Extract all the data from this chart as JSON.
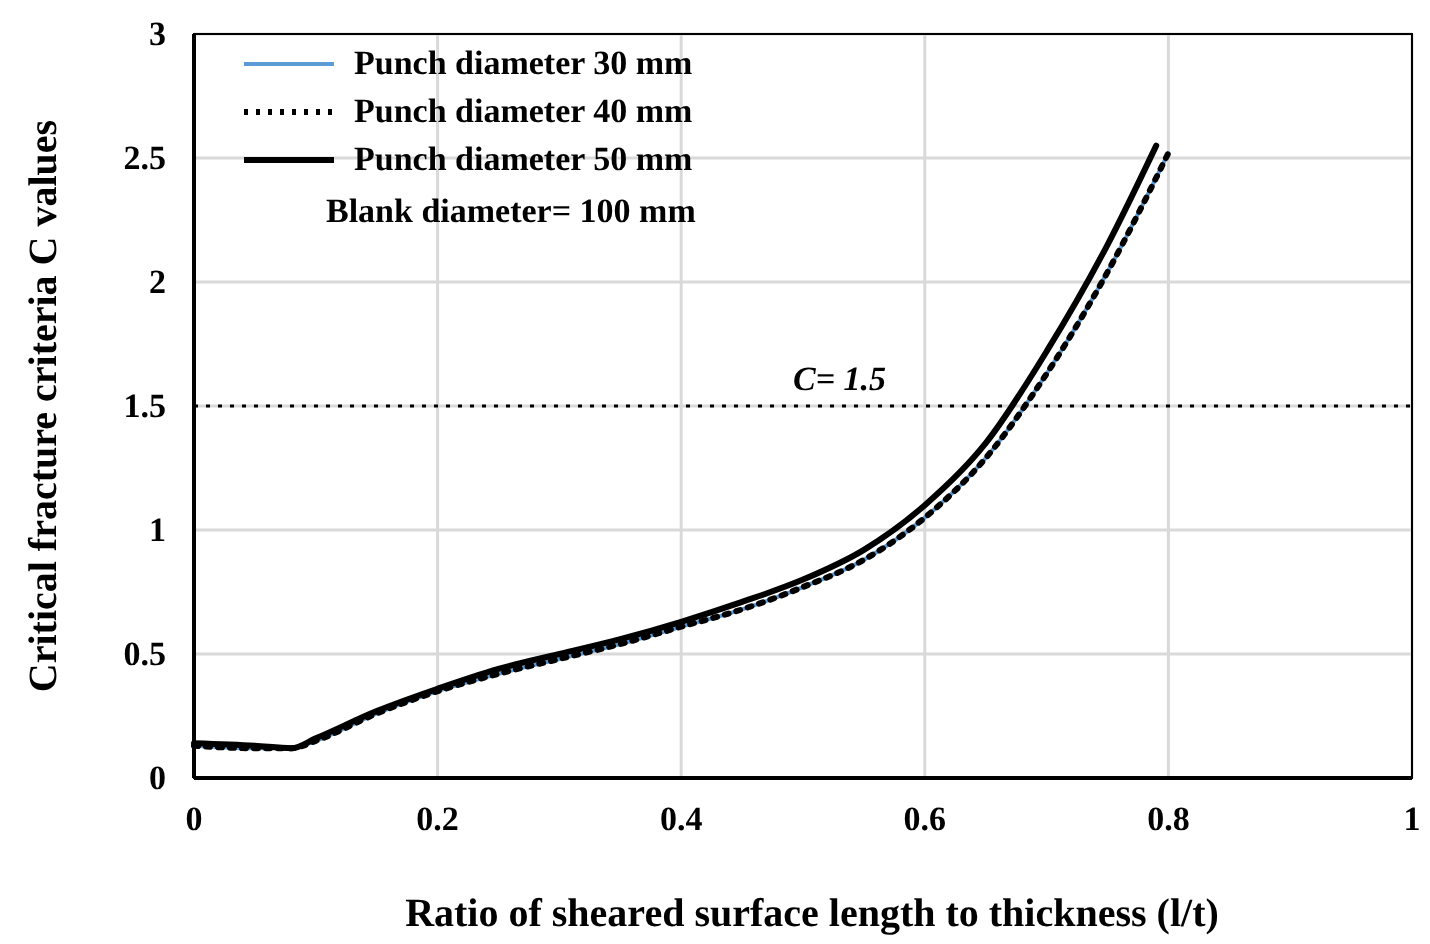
{
  "chart_data": {
    "type": "line",
    "xlabel": "Ratio of sheared surface length to thickness (l/t)",
    "ylabel": "Critical fracture criteria C values",
    "xlim": [
      0,
      1
    ],
    "ylim": [
      0,
      3
    ],
    "xticks": [
      0,
      0.2,
      0.4,
      0.6,
      0.8,
      1
    ],
    "yticks": [
      0,
      0.5,
      1,
      1.5,
      2,
      2.5,
      3
    ],
    "grid": true,
    "legend": "top left",
    "annotations": [
      "Blank diameter= 100 mm"
    ],
    "ref_lines": [
      {
        "axis": "y",
        "value": 1.5,
        "label": "C= 1.5",
        "line_style": "dotted",
        "color": "#000000"
      }
    ],
    "series": [
      {
        "name": "Punch diameter 30 mm",
        "color": "#5b9bd5",
        "line_style": "solid",
        "x": [
          0,
          0.05,
          0.08,
          0.1,
          0.15,
          0.2,
          0.25,
          0.3,
          0.35,
          0.4,
          0.45,
          0.5,
          0.55,
          0.6,
          0.65,
          0.7,
          0.75,
          0.8
        ],
        "values": [
          0.13,
          0.12,
          0.12,
          0.15,
          0.26,
          0.35,
          0.42,
          0.48,
          0.54,
          0.61,
          0.68,
          0.77,
          0.88,
          1.05,
          1.29,
          1.63,
          2.04,
          2.52
        ]
      },
      {
        "name": "Punch diameter 40 mm",
        "color": "#000000",
        "line_style": "dotted",
        "x": [
          0,
          0.05,
          0.08,
          0.1,
          0.15,
          0.2,
          0.25,
          0.3,
          0.35,
          0.4,
          0.45,
          0.5,
          0.55,
          0.6,
          0.65,
          0.7,
          0.75,
          0.8
        ],
        "values": [
          0.13,
          0.12,
          0.12,
          0.15,
          0.26,
          0.35,
          0.42,
          0.48,
          0.54,
          0.61,
          0.68,
          0.77,
          0.88,
          1.05,
          1.29,
          1.63,
          2.04,
          2.52
        ]
      },
      {
        "name": "Punch diameter 50 mm",
        "color": "#000000",
        "line_style": "solid",
        "x": [
          0,
          0.05,
          0.08,
          0.1,
          0.15,
          0.2,
          0.25,
          0.3,
          0.35,
          0.4,
          0.45,
          0.5,
          0.55,
          0.6,
          0.65,
          0.7,
          0.75,
          0.79
        ],
        "values": [
          0.14,
          0.13,
          0.12,
          0.16,
          0.27,
          0.36,
          0.44,
          0.5,
          0.56,
          0.63,
          0.71,
          0.8,
          0.92,
          1.1,
          1.35,
          1.72,
          2.15,
          2.55
        ]
      }
    ]
  }
}
